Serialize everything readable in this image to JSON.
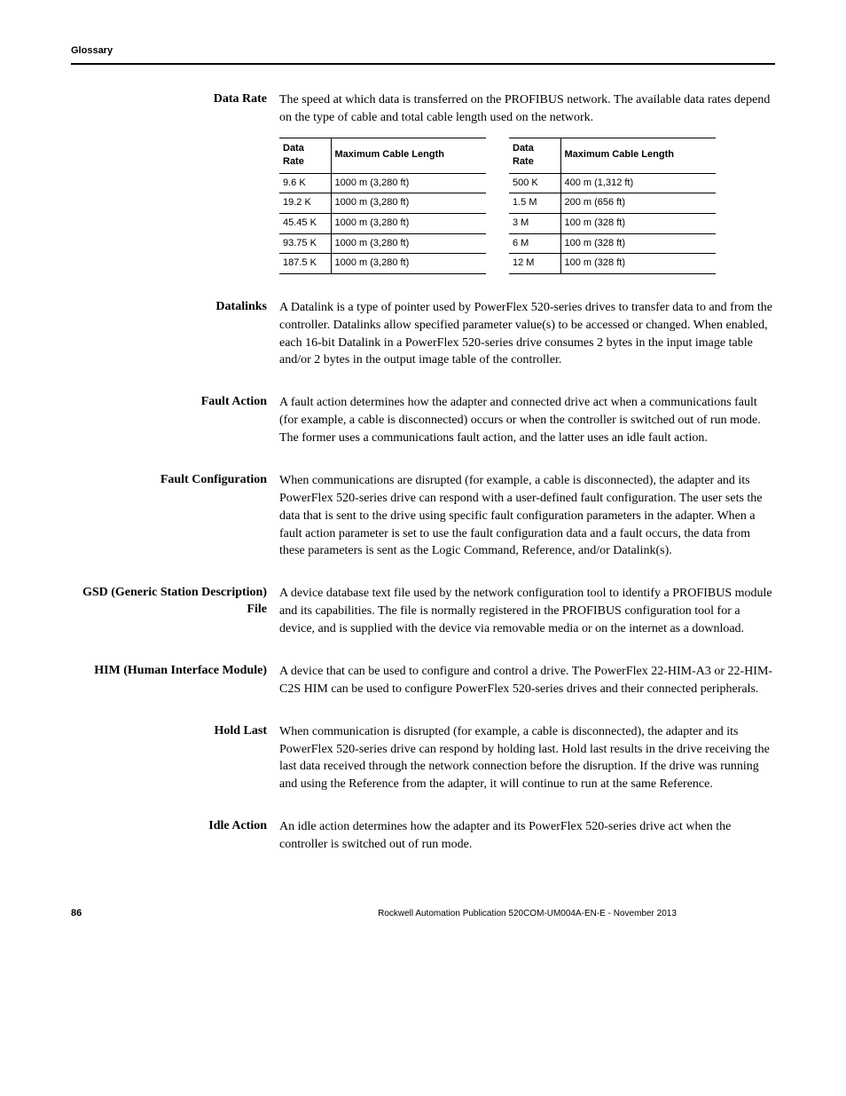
{
  "header": "Glossary",
  "entries": {
    "data_rate": {
      "term": "Data Rate",
      "def": "The speed at which data is transferred on the PROFIBUS network. The available data rates depend on the type of cable and total cable length used on the network."
    },
    "datalinks": {
      "term": "Datalinks",
      "def": "A Datalink is a type of pointer used by PowerFlex 520-series drives to transfer data to and from the controller. Datalinks allow specified parameter value(s) to be accessed or changed. When enabled, each 16-bit Datalink in a PowerFlex 520-series drive consumes 2 bytes in the input image table and/or 2 bytes in the output image table of the controller."
    },
    "fault_action": {
      "term": "Fault Action",
      "def": "A fault action determines how the adapter and connected drive act when a communications fault (for example, a cable is disconnected) occurs or when the controller is switched out of run mode. The former uses a communications fault action, and the latter uses an idle fault action."
    },
    "fault_config": {
      "term": "Fault Configuration",
      "def": "When communications are disrupted (for example, a cable is disconnected), the adapter and its PowerFlex 520-series drive can respond with a user-defined fault configuration. The user sets the data that is sent to the drive using specific fault configuration parameters in the adapter. When a fault action parameter is set to use the fault configuration data and a fault occurs, the data from these parameters is sent as the Logic Command, Reference, and/or Datalink(s)."
    },
    "gsd": {
      "term": "GSD (Generic Station Description) File",
      "def": "A device database text file used by the network configuration tool to identify a PROFIBUS module and its capabilities. The file is normally registered in the PROFIBUS configuration tool for a device, and is supplied with the device via removable media or on the internet as a download."
    },
    "him": {
      "term": "HIM (Human Interface Module)",
      "def": "A device that can be used to configure and control a drive. The PowerFlex 22-HIM-A3 or 22-HIM-C2S HIM can be used to configure PowerFlex 520-series drives and their connected peripherals."
    },
    "hold_last": {
      "term": "Hold Last",
      "def": "When communication is disrupted (for example, a cable is disconnected), the adapter and its PowerFlex 520-series drive can respond by holding last. Hold last results in the drive receiving the last data received through the network connection before the disruption. If the drive was running and using the Reference from the adapter, it will continue to run at the same Reference."
    },
    "idle_action": {
      "term": "Idle Action",
      "def": "An idle action determines how the adapter and its PowerFlex 520-series drive act when the controller is switched out of run mode."
    }
  },
  "table_headers": {
    "rate": "Data Rate",
    "len": "Maximum Cable Length"
  },
  "table1_rows": [
    [
      "9.6 K",
      "1000 m (3,280 ft)"
    ],
    [
      "19.2 K",
      "1000 m (3,280 ft)"
    ],
    [
      "45.45 K",
      "1000 m (3,280 ft)"
    ],
    [
      "93.75 K",
      "1000 m (3,280 ft)"
    ],
    [
      "187.5 K",
      "1000 m (3,280 ft)"
    ]
  ],
  "table2_rows": [
    [
      "500 K",
      "400 m (1,312 ft)"
    ],
    [
      "1.5 M",
      "200 m (656 ft)"
    ],
    [
      "3 M",
      "100 m (328 ft)"
    ],
    [
      "6 M",
      "100 m (328 ft)"
    ],
    [
      "12 M",
      "100 m (328 ft)"
    ]
  ],
  "footer": {
    "page": "86",
    "pub": "Rockwell Automation Publication 520COM-UM004A-EN-E - November 2013"
  }
}
